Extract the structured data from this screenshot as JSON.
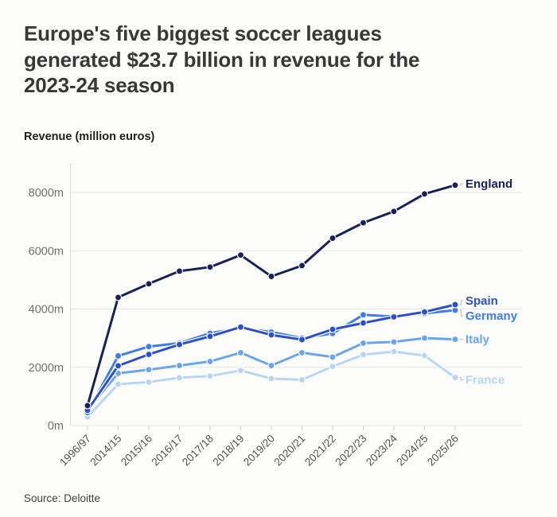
{
  "header": {
    "title": "Europe's five biggest soccer leagues generated $23.7 billion in revenue for the 2023-24 season",
    "title_lines": [
      "Europe's five biggest soccer leagues",
      "generated $23.7 billion in revenue for the",
      "2023-24 season"
    ]
  },
  "footer": {
    "source": "Source: Deloitte"
  },
  "chart_data": {
    "type": "line",
    "title": "Europe's five biggest soccer leagues generated $23.7 billion in revenue for the 2023-24 season",
    "xlabel": "",
    "ylabel": "Revenue (million euros)",
    "ylim": [
      0,
      8800
    ],
    "grid": "horizontal",
    "legend_position": "line-end-labels",
    "y_ticks": [
      {
        "value": 0,
        "label": "0m"
      },
      {
        "value": 2000,
        "label": "2000m"
      },
      {
        "value": 4000,
        "label": "4000m"
      },
      {
        "value": 6000,
        "label": "6000m"
      },
      {
        "value": 8000,
        "label": "8000m"
      }
    ],
    "categories": [
      "1996/97",
      "2014/15",
      "2015/16",
      "2016/17",
      "2017/18",
      "2018/19",
      "2019/20",
      "2020/21",
      "2021/22",
      "2022/23",
      "2023/24",
      "2024/25",
      "2025/26"
    ],
    "series": [
      {
        "name": "England",
        "color": "#19205a",
        "values": [
          685,
          4400,
          4865,
          5300,
          5440,
          5850,
          5120,
          5490,
          6430,
          6960,
          7350,
          7950,
          8250
        ]
      },
      {
        "name": "Spain",
        "color": "#2b50c8",
        "values": [
          525,
          2050,
          2440,
          2780,
          3060,
          3380,
          3110,
          2950,
          3300,
          3520,
          3730,
          3900,
          4150
        ]
      },
      {
        "name": "Germany",
        "color": "#3e7ce8",
        "values": [
          445,
          2390,
          2710,
          2830,
          3170,
          3350,
          3210,
          3000,
          3160,
          3800,
          3740,
          3850,
          3960
        ]
      },
      {
        "name": "Italy",
        "color": "#69a4ec",
        "values": [
          550,
          1790,
          1920,
          2060,
          2200,
          2500,
          2060,
          2500,
          2350,
          2830,
          2870,
          3000,
          2960
        ]
      },
      {
        "name": "France",
        "color": "#b9d5f5",
        "values": [
          295,
          1420,
          1490,
          1640,
          1700,
          1890,
          1610,
          1570,
          2030,
          2430,
          2540,
          2400,
          1650
        ]
      }
    ],
    "colors": {
      "background": "#fcfcfb",
      "grid": "#e5e5e5",
      "axis_line": "#d9d9d9",
      "tick_mark": "#cfcfcf",
      "y_tick_label": "#6f6f6f",
      "x_tick_label": "#515151",
      "label_connector": "#c5c5c5"
    }
  }
}
